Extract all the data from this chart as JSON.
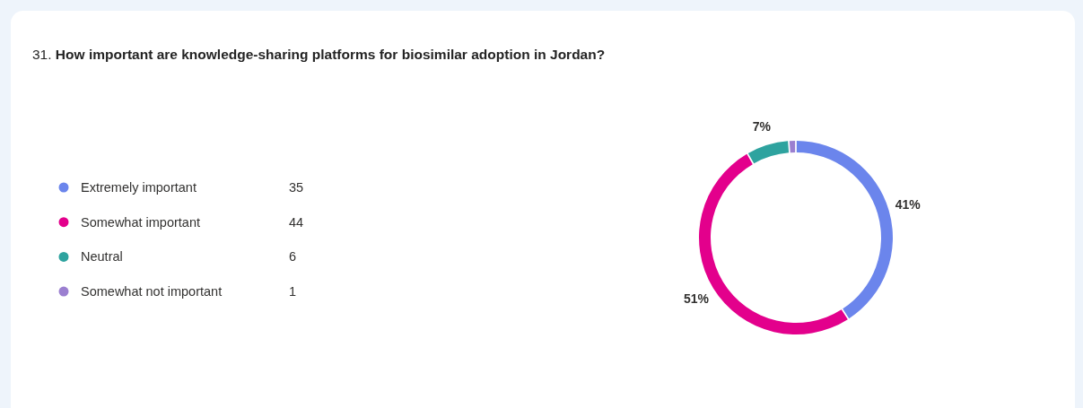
{
  "chart_data": {
    "type": "donut",
    "title": "31. How important are knowledge-sharing platforms for biosimilar adoption in Jordan?",
    "categories": [
      "Extremely important",
      "Somewhat important",
      "Neutral",
      "Somewhat not important"
    ],
    "values": [
      41,
      51,
      7,
      1
    ],
    "annotations": [
      "35",
      "44",
      "6",
      "1"
    ],
    "colors": [
      "#6b85ec",
      "#e3008c",
      "#2ea39f",
      "#9b7fd0"
    ],
    "value_labels": [
      "41%",
      "51%",
      "7%",
      null
    ],
    "legend": "left"
  }
}
